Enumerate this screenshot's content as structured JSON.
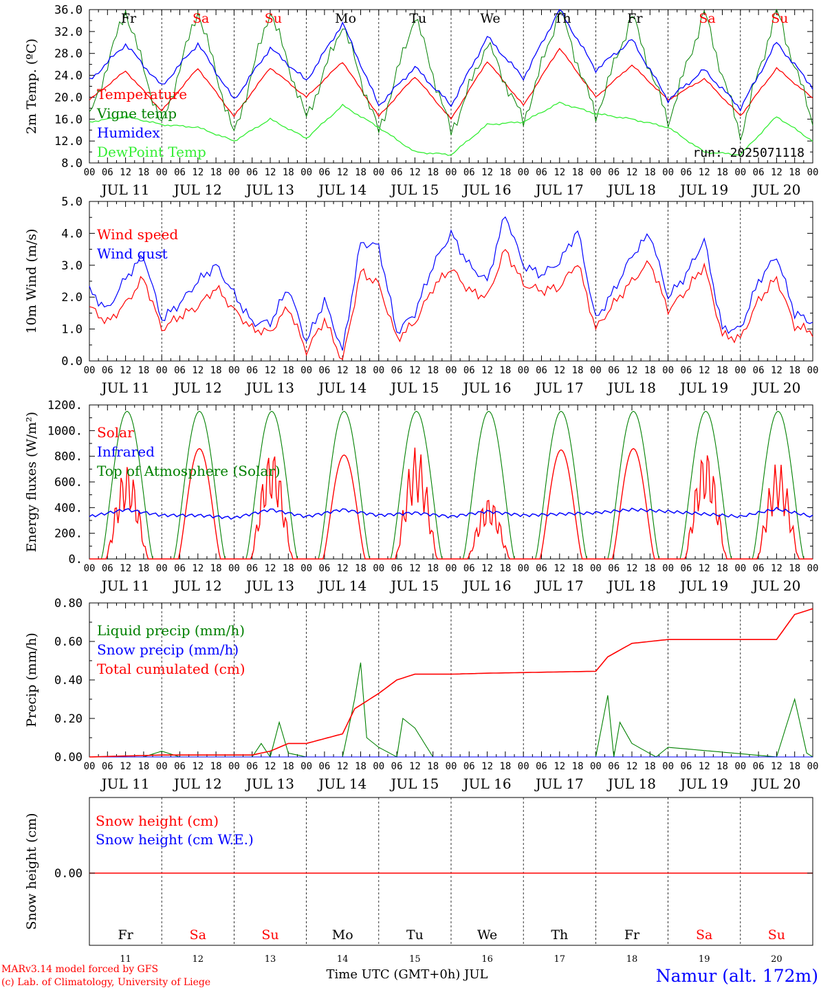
{
  "footer": {
    "model": "MARv3.14 model forced by GFS",
    "credit": "(c) Lab. of Climatology, University of Liege",
    "xlabel": "Time UTC (GMT+0h) JUL",
    "station": "Namur (alt. 172m)"
  },
  "run_label": "run: 2025071118",
  "hour_ticks": [
    "00",
    "06",
    "12",
    "18"
  ],
  "days": [
    {
      "date": "JUL 11",
      "num": "11",
      "dow": "Fr",
      "weekend": false
    },
    {
      "date": "JUL 12",
      "num": "12",
      "dow": "Sa",
      "weekend": true
    },
    {
      "date": "JUL 13",
      "num": "13",
      "dow": "Su",
      "weekend": true
    },
    {
      "date": "JUL 14",
      "num": "14",
      "dow": "Mo",
      "weekend": false
    },
    {
      "date": "JUL 15",
      "num": "15",
      "dow": "Tu",
      "weekend": false
    },
    {
      "date": "JUL 16",
      "num": "16",
      "dow": "We",
      "weekend": false
    },
    {
      "date": "JUL 17",
      "num": "17",
      "dow": "Th",
      "weekend": false
    },
    {
      "date": "JUL 18",
      "num": "18",
      "dow": "Fr",
      "weekend": false
    },
    {
      "date": "JUL 19",
      "num": "19",
      "dow": "Sa",
      "weekend": true
    },
    {
      "date": "JUL 20",
      "num": "20",
      "dow": "Su",
      "weekend": true
    }
  ],
  "colors": {
    "red": "#ff0000",
    "green": "#008000",
    "blue": "#0000ff",
    "lightgreen": "#33ee33",
    "weekend": "#ff0000"
  },
  "chart_data": [
    {
      "type": "line",
      "ylabel": "2m Temp. (ºC)",
      "ylim": [
        8,
        36
      ],
      "ytick_labels": [
        "8.0",
        "12.0",
        "16.0",
        "20.0",
        "24.0",
        "28.0",
        "32.0",
        "36.0"
      ],
      "x_hours": [
        0,
        12,
        24,
        36,
        48,
        60,
        72,
        84,
        96,
        108,
        120,
        132,
        144,
        156,
        168,
        180,
        192,
        204,
        216,
        228,
        240
      ],
      "series": [
        {
          "name": "Temperature",
          "color": "#ff0000",
          "values": [
            19.5,
            24.8,
            17.5,
            25.3,
            16.5,
            25.4,
            20.0,
            26.5,
            16.5,
            23.8,
            16.0,
            26.6,
            18.5,
            29.0,
            20.0,
            25.9,
            19.5,
            23.4,
            16.6,
            25.3,
            19.8
          ]
        },
        {
          "name": "Vigne temp",
          "color": "#008000",
          "values": [
            16.0,
            36.0,
            14.5,
            36.0,
            13.0,
            36.0,
            16.0,
            33.5,
            13.5,
            35.0,
            13.5,
            30.0,
            15.5,
            36.0,
            16.5,
            35.0,
            15.5,
            35.5,
            13.0,
            36.0,
            15.5
          ]
        },
        {
          "name": "Humidex",
          "color": "#0000ff",
          "values": [
            23.0,
            29.7,
            22.0,
            29.8,
            19.5,
            29.0,
            23.0,
            33.5,
            18.5,
            25.5,
            18.5,
            31.0,
            23.5,
            36.0,
            25.0,
            30.5,
            19.5,
            25.0,
            18.0,
            30.0,
            21.8
          ]
        },
        {
          "name": "DewPoint Temp",
          "color": "#33ee33",
          "values": [
            15.5,
            16.5,
            15.0,
            14.5,
            12.0,
            16.0,
            12.5,
            18.5,
            14.5,
            10.0,
            9.5,
            15.0,
            15.5,
            19.0,
            17.0,
            16.0,
            14.5,
            10.0,
            9.5,
            16.5,
            12.0
          ]
        }
      ]
    },
    {
      "type": "line",
      "ylabel": "10m Wind (m/s)",
      "ylim": [
        0,
        5
      ],
      "ytick_labels": [
        "0.0",
        "1.0",
        "2.0",
        "3.0",
        "4.0",
        "5.0"
      ],
      "x_hours": [
        0,
        6,
        12,
        18,
        24,
        30,
        36,
        42,
        48,
        54,
        60,
        66,
        72,
        78,
        84,
        90,
        96,
        102,
        108,
        114,
        120,
        126,
        132,
        138,
        144,
        150,
        156,
        162,
        168,
        174,
        180,
        186,
        192,
        198,
        204,
        210,
        216,
        222,
        228,
        234,
        240
      ],
      "series": [
        {
          "name": "Wind speed",
          "color": "#ff0000",
          "values": [
            1.7,
            1.2,
            1.8,
            2.6,
            1.0,
            1.4,
            1.7,
            2.3,
            1.6,
            1.0,
            0.9,
            1.7,
            0.3,
            1.3,
            0.0,
            2.8,
            2.4,
            0.7,
            1.2,
            2.3,
            2.9,
            2.2,
            2.0,
            3.5,
            2.4,
            2.2,
            2.3,
            3.1,
            1.0,
            1.8,
            2.5,
            3.1,
            1.6,
            2.2,
            3.0,
            0.8,
            0.7,
            1.9,
            2.6,
            1.1,
            0.9
          ]
        },
        {
          "name": "Wind gust",
          "color": "#0000ff",
          "values": [
            2.2,
            1.6,
            2.6,
            3.3,
            1.3,
            1.8,
            2.5,
            3.0,
            2.1,
            1.2,
            1.2,
            2.3,
            0.6,
            1.9,
            0.3,
            3.7,
            3.6,
            0.9,
            1.5,
            3.0,
            4.0,
            3.0,
            2.5,
            4.6,
            3.0,
            2.7,
            3.1,
            4.1,
            1.3,
            2.2,
            3.3,
            4.0,
            2.0,
            2.7,
            3.8,
            1.0,
            1.0,
            2.5,
            3.3,
            1.5,
            1.2
          ]
        }
      ]
    },
    {
      "type": "line",
      "ylabel": "Energy fluxes (W/m²)",
      "ylim": [
        0,
        1200
      ],
      "ytick_labels": [
        "0.",
        "200.",
        "400.",
        "600.",
        "800.",
        "1000.",
        "1200."
      ],
      "peaks": {
        "solar": [
          740,
          860,
          860,
          810,
          880,
          490,
          850,
          860,
          860,
          760
        ],
        "toa": [
          1150,
          1150,
          1150,
          1150,
          1150,
          1150,
          1150,
          1150,
          1150,
          1150
        ]
      },
      "series": [
        {
          "name": "Solar",
          "color": "#ff0000"
        },
        {
          "name": "Infrared",
          "color": "#0000ff",
          "x_hours": [
            0,
            12,
            24,
            36,
            48,
            60,
            72,
            84,
            96,
            108,
            120,
            132,
            144,
            156,
            168,
            180,
            192,
            204,
            216,
            228,
            240
          ],
          "values": [
            330,
            385,
            340,
            340,
            320,
            385,
            330,
            385,
            340,
            360,
            330,
            370,
            340,
            350,
            360,
            385,
            370,
            350,
            330,
            390,
            330
          ]
        },
        {
          "name": "Top of Atmosphere (Solar)",
          "color": "#008000"
        }
      ]
    },
    {
      "type": "line",
      "ylabel": "Precip (mm/h)",
      "ylim": [
        0,
        0.8
      ],
      "ytick_labels": [
        "0.00",
        "0.20",
        "0.40",
        "0.60",
        "0.80"
      ],
      "series": [
        {
          "name": "Liquid precip (mm/h)",
          "color": "#008000",
          "x_hours": [
            0,
            18,
            24,
            30,
            54,
            57,
            60,
            63,
            66,
            72,
            84,
            88,
            90,
            92,
            96,
            102,
            104,
            108,
            114,
            120,
            168,
            172,
            174,
            176,
            180,
            188,
            192,
            228,
            232,
            234,
            238,
            240
          ],
          "values": [
            0,
            0,
            0.03,
            0,
            0,
            0.07,
            0,
            0.18,
            0.02,
            0,
            0,
            0.3,
            0.49,
            0.1,
            0.05,
            0,
            0.2,
            0.15,
            0,
            0,
            0,
            0.32,
            0,
            0.18,
            0.07,
            0,
            0.05,
            0,
            0.2,
            0.3,
            0.02,
            0
          ]
        },
        {
          "name": "Snow precip (mm/h)",
          "color": "#0000ff",
          "x_hours": [
            0,
            240
          ],
          "values": [
            0,
            0
          ]
        },
        {
          "name": "Total cumulated (cm)",
          "color": "#ff0000",
          "x_hours": [
            0,
            24,
            54,
            60,
            66,
            72,
            84,
            88,
            96,
            102,
            108,
            114,
            120,
            132,
            168,
            172,
            180,
            192,
            228,
            234,
            240
          ],
          "values": [
            0,
            0.01,
            0.01,
            0.03,
            0.07,
            0.07,
            0.12,
            0.25,
            0.33,
            0.4,
            0.43,
            0.43,
            0.43,
            0.435,
            0.445,
            0.52,
            0.59,
            0.61,
            0.61,
            0.74,
            0.77
          ]
        }
      ]
    },
    {
      "type": "line",
      "ylabel": "Snow height (cm)",
      "ytick_labels": [
        "0.00"
      ],
      "series": [
        {
          "name": "Snow height (cm)",
          "color": "#ff0000",
          "x_hours": [
            0,
            240
          ],
          "values": [
            0,
            0
          ]
        },
        {
          "name": "Snow height (cm W.E.)",
          "color": "#0000ff"
        }
      ]
    }
  ]
}
